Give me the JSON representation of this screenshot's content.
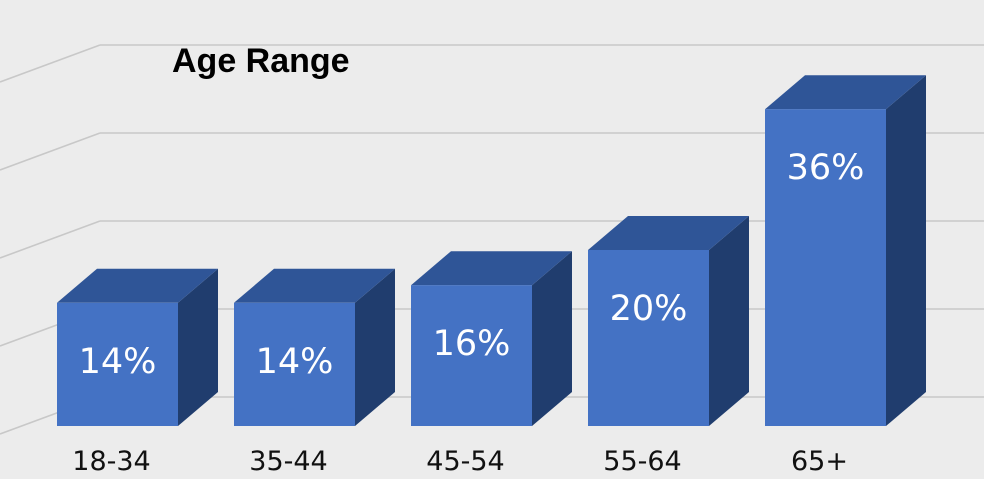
{
  "chart_data": {
    "type": "bar",
    "title": "Age Range",
    "categories": [
      "18-34",
      "35-44",
      "45-54",
      "55-64",
      "65+"
    ],
    "values": [
      14,
      14,
      16,
      20,
      36
    ],
    "value_labels": [
      "14%",
      "14%",
      "16%",
      "20%",
      "36%"
    ],
    "ylim": [
      0,
      40
    ],
    "grid": true,
    "legend": "none",
    "style": "3d-column"
  },
  "colors": {
    "background": "#ececec",
    "bar_front": "#4472c4",
    "bar_top": "#2f5597",
    "bar_side": "#203d6e",
    "gridline": "#c8c8c8",
    "title": "#000000",
    "bar_label": "#ffffff",
    "category_label": "#111111"
  }
}
